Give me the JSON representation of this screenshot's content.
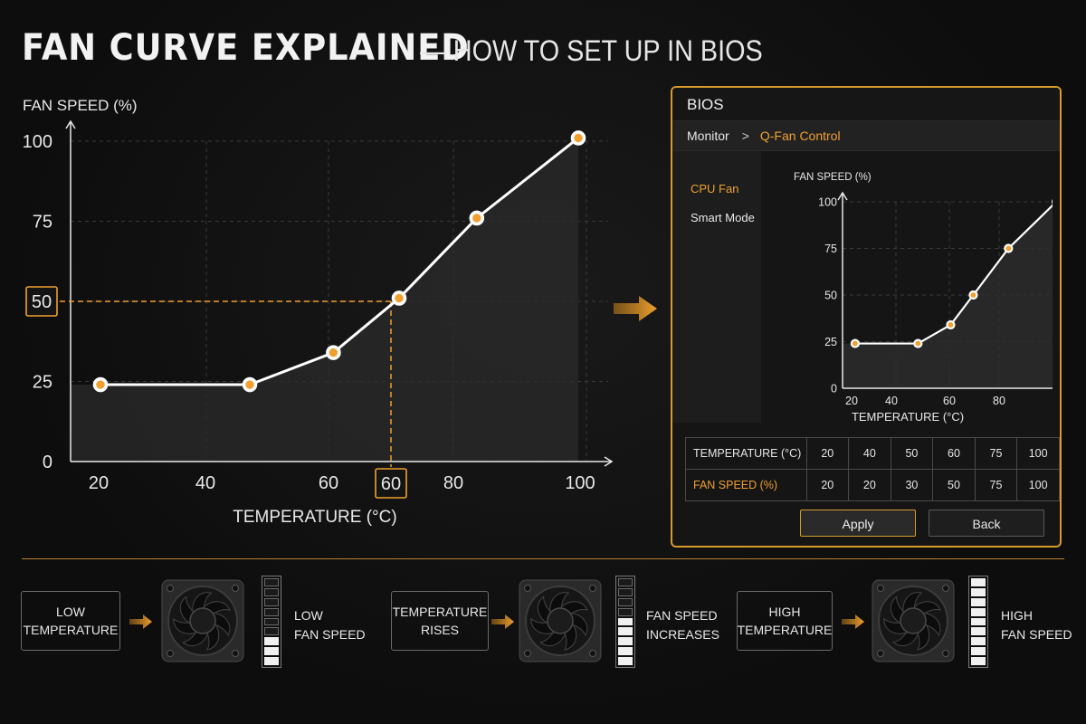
{
  "title": {
    "main": "FAN CURVE EXPLAINED",
    "dash": "—",
    "sub": "HOW TO SET UP IN BIOS"
  },
  "main_chart": {
    "ylabel": "FAN SPEED (%)",
    "xlabel": "TEMPERATURE (°C)",
    "y_ticks": [
      "0",
      "25",
      "50",
      "75",
      "100"
    ],
    "x_ticks": [
      "20",
      "40",
      "60",
      "80",
      "100"
    ],
    "highlight_x": "60",
    "highlight_y": "50"
  },
  "chart_data": [
    {
      "type": "line",
      "xlabel": "TEMPERATURE (°C)",
      "ylabel": "FAN SPEED (%)",
      "x": [
        20,
        45,
        59,
        70,
        83,
        100
      ],
      "y": [
        24,
        24,
        34,
        51,
        76,
        101
      ],
      "xlim": [
        15,
        105
      ],
      "ylim": [
        0,
        100
      ],
      "grid": true,
      "highlight": {
        "x": 60,
        "y": 50
      }
    },
    {
      "type": "line",
      "xlabel": "TEMPERATURE (°C)",
      "ylabel": "FAN SPEED (%)",
      "x": [
        20,
        45,
        58,
        67,
        81,
        100
      ],
      "y": [
        24,
        24,
        34,
        50,
        75,
        100
      ],
      "xlim": [
        15,
        105
      ],
      "ylim": [
        0,
        100
      ],
      "grid": true
    }
  ],
  "bios": {
    "title": "BIOS",
    "breadcrumb": {
      "parent": "Monitor",
      "separator": ">",
      "current": "Q-Fan Control"
    },
    "side": {
      "fan": "CPU Fan",
      "mode": "Smart Mode"
    },
    "chart": {
      "ylabel": "FAN SPEED (%)",
      "xlabel": "TEMPERATURE (°C)",
      "y_ticks": [
        "0",
        "25",
        "50",
        "75",
        "100"
      ],
      "x_ticks": [
        "20",
        "40",
        "60",
        "80",
        "100"
      ]
    },
    "table": {
      "row1_label": "TEMPERATURE (°C)",
      "row1": [
        "20",
        "40",
        "50",
        "60",
        "75",
        "100"
      ],
      "row2_label": "FAN SPEED (%)",
      "row2": [
        "20",
        "20",
        "30",
        "50",
        "75",
        "100"
      ]
    },
    "apply_label": "Apply",
    "back_label": "Back"
  },
  "stages": [
    {
      "box": "LOW\nTEMPERATURE",
      "result": "LOW\nFAN SPEED",
      "level": 0.3
    },
    {
      "box": "TEMPERATURE\nRISES",
      "result": "FAN SPEED\nINCREASES",
      "level": 0.5
    },
    {
      "box": "HIGH\nTEMPERATURE",
      "result": "HIGH\nFAN SPEED",
      "level": 1.0
    }
  ],
  "colors": {
    "accent": "#f0a030",
    "background": "#0f0f0f",
    "line": "#ffffff",
    "border": "#d89a2a"
  },
  "icons": {
    "arrow": "arrow-right-icon",
    "fan": "case-fan-icon",
    "meter": "speed-meter-icon"
  }
}
